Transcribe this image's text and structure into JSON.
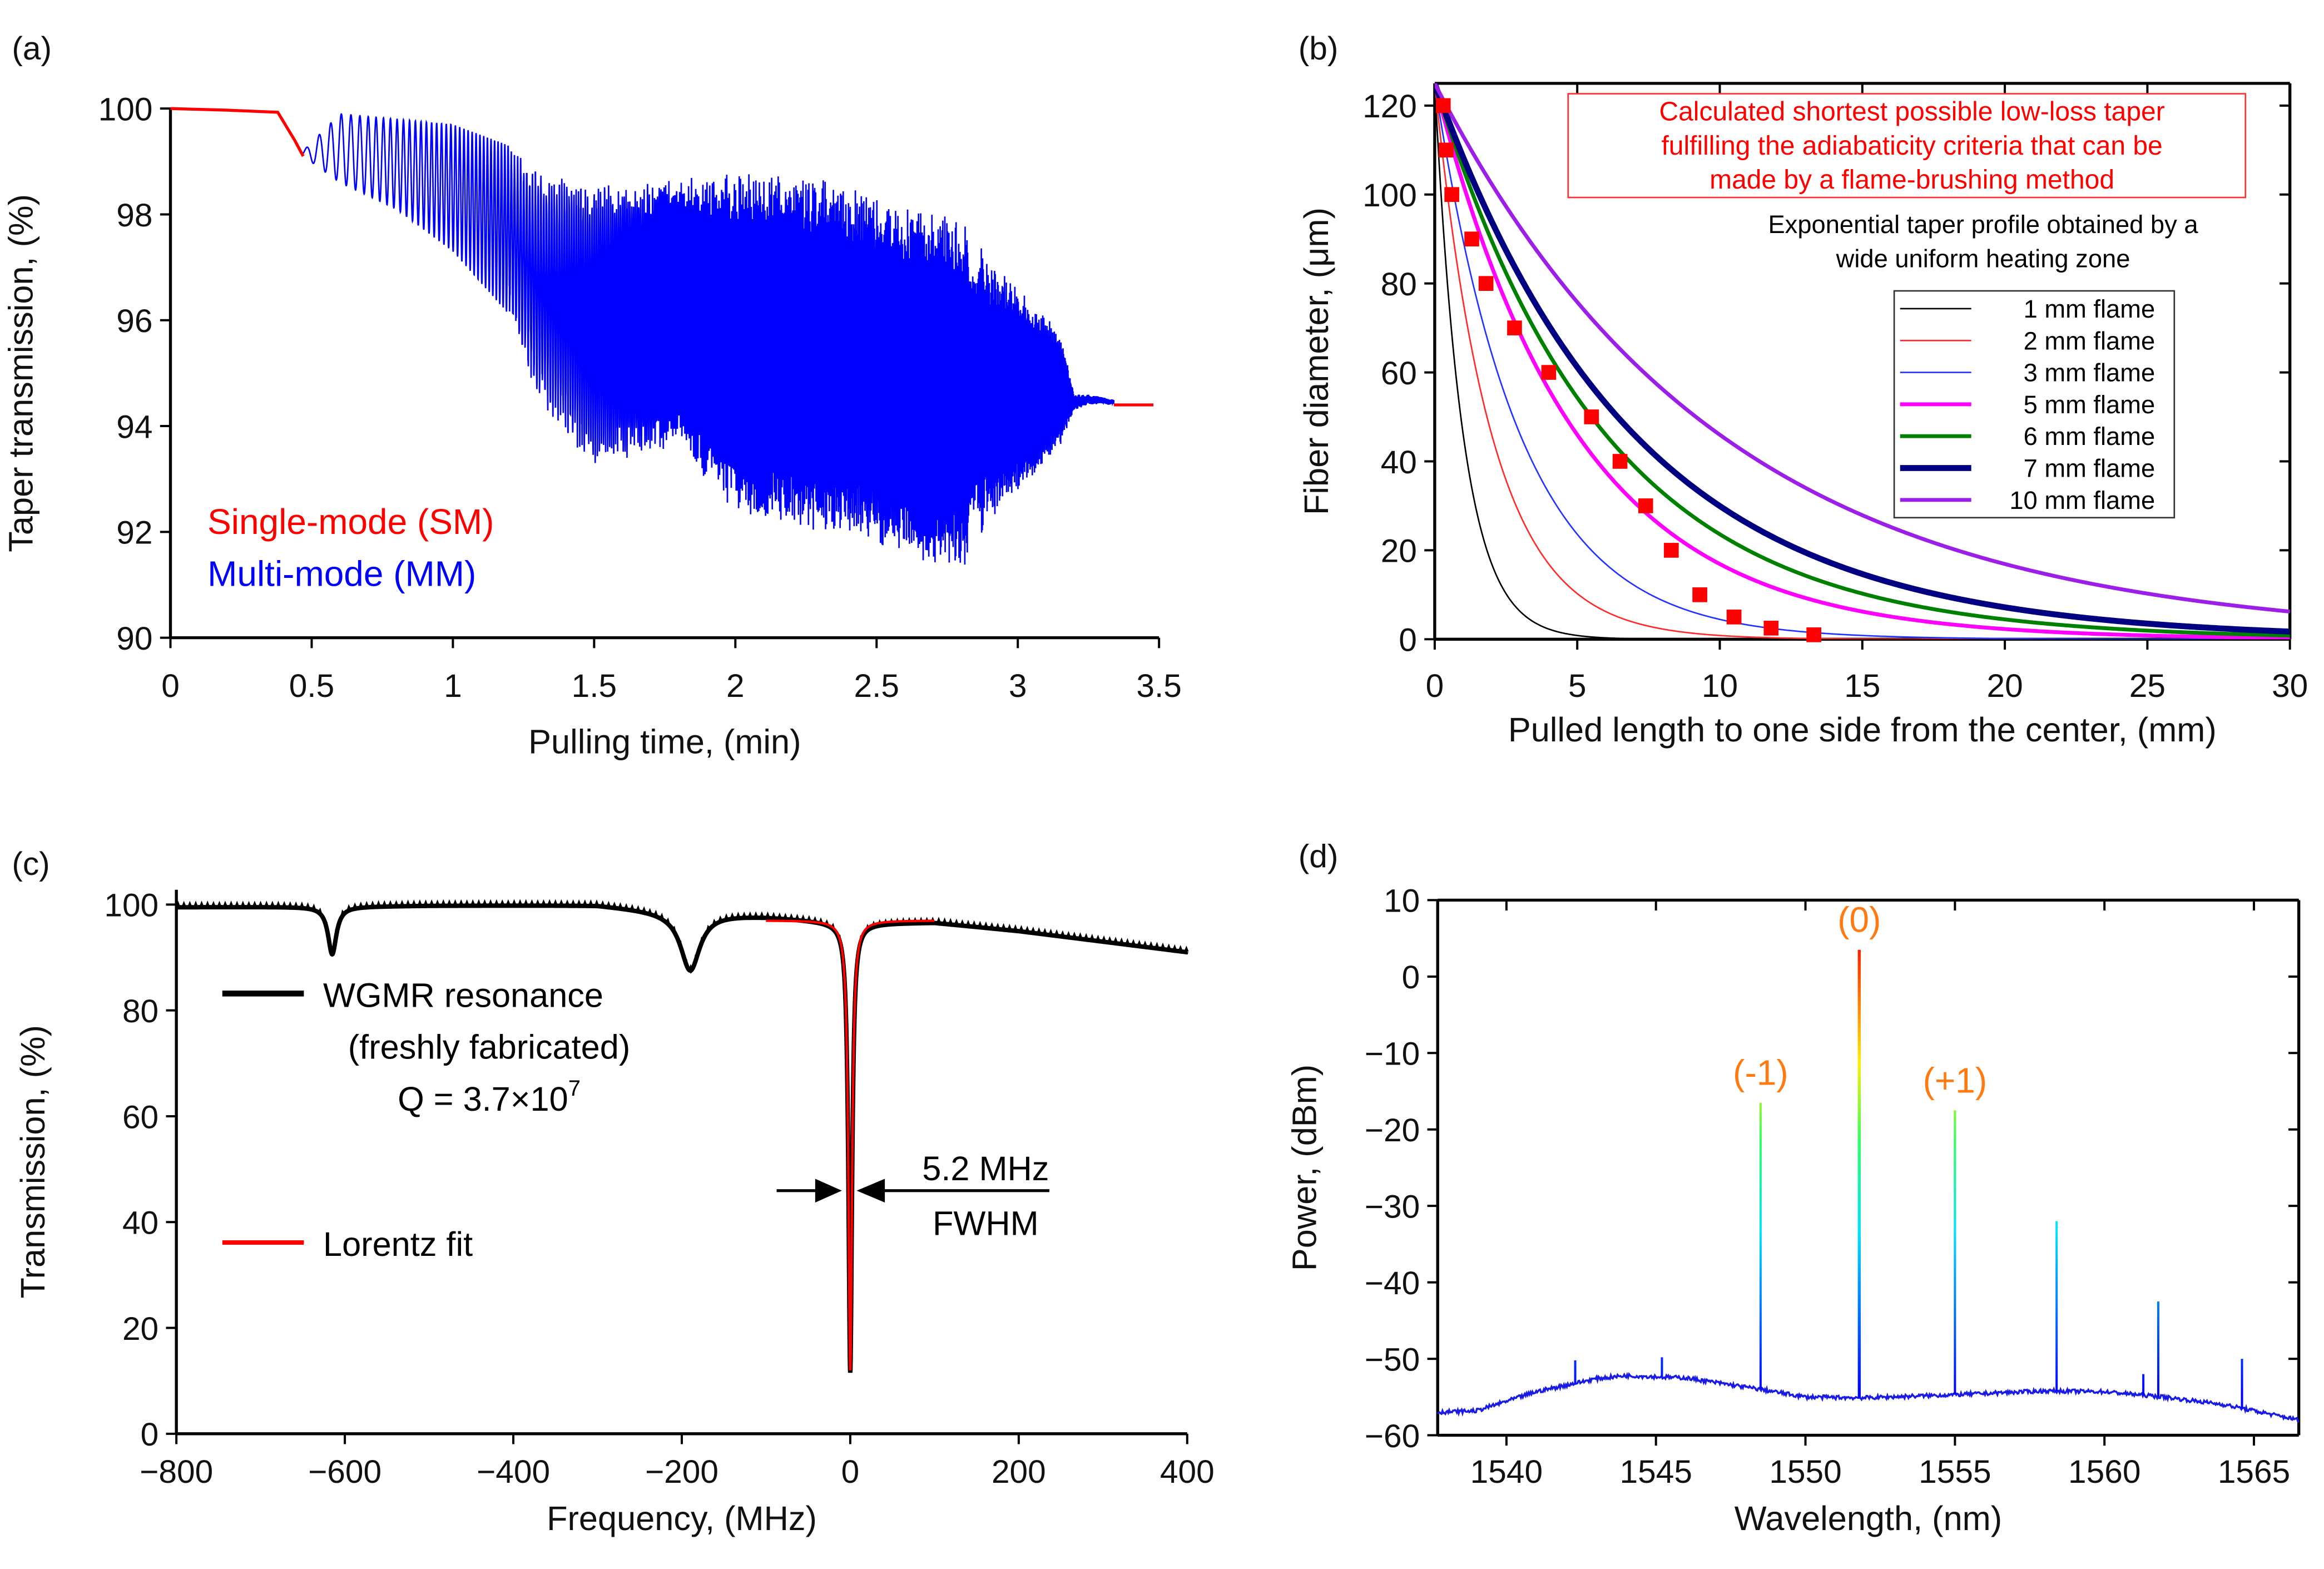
{
  "panel_labels": [
    "(a)",
    "(b)",
    "(c)",
    "(d)"
  ],
  "chart_data": [
    {
      "id": "a",
      "type": "line",
      "xlabel": "Pulling time, (min)",
      "ylabel": "Taper transmission, (%)",
      "xlim": [
        0,
        3.5
      ],
      "ylim": [
        90,
        100
      ],
      "xticks": [
        "0",
        "0.5",
        "1",
        "1.5",
        "2",
        "2.5",
        "3",
        "3.5"
      ],
      "xtick_values": [
        0,
        0.5,
        1,
        1.5,
        2,
        2.5,
        3,
        3.5
      ],
      "yticks": [
        "90",
        "92",
        "94",
        "96",
        "98",
        "100"
      ],
      "ytick_values": [
        90,
        92,
        94,
        96,
        98,
        100
      ],
      "legend": [
        "Single-mode (SM)",
        "Multi-mode (MM)"
      ],
      "colors": {
        "sm": "#ff0000",
        "mm": "#0000ff"
      },
      "sm_start": {
        "t": [
          0,
          0.2,
          0.38,
          0.44,
          0.47
        ],
        "y": [
          100,
          99.95,
          99.9,
          99.4,
          99.1
        ]
      },
      "sm_end": {
        "t": [
          3.34,
          3.48
        ],
        "y": [
          94.4,
          94.4
        ]
      },
      "mm_envelope": {
        "t": [
          0.47,
          0.6,
          0.8,
          1.0,
          1.2,
          1.3,
          1.5,
          1.8,
          2.0,
          2.3,
          2.6,
          2.8,
          2.9,
          3.0,
          3.15,
          3.2,
          3.25,
          3.34
        ],
        "upper": [
          99.2,
          99.9,
          99.8,
          99.7,
          99.3,
          98.8,
          98.6,
          98.7,
          98.8,
          98.7,
          98.2,
          97.9,
          97.2,
          96.6,
          95.8,
          94.6,
          94.6,
          94.5
        ],
        "lower": [
          99.1,
          98.6,
          98.1,
          97.3,
          96.1,
          94.5,
          93.2,
          93.6,
          92.3,
          92.0,
          91.5,
          91.2,
          92.2,
          92.7,
          93.6,
          94.3,
          94.4,
          94.4
        ]
      }
    },
    {
      "id": "b",
      "type": "line",
      "xlabel": "Pulled length to one side from the center, (mm)",
      "ylabel": "Fiber diameter, (μm)",
      "xlim": [
        0,
        30
      ],
      "ylim": [
        0,
        125
      ],
      "xticks": [
        "0",
        "5",
        "10",
        "15",
        "20",
        "25",
        "30"
      ],
      "xtick_values": [
        0,
        5,
        10,
        15,
        20,
        25,
        30
      ],
      "yticks": [
        "0",
        "20",
        "40",
        "60",
        "80",
        "100",
        "120"
      ],
      "ytick_values": [
        0,
        20,
        40,
        60,
        80,
        100,
        120
      ],
      "initial_diameter": 125,
      "series": [
        {
          "name": "1 mm flame",
          "decay_length": 1,
          "color": "#000000",
          "width": 1
        },
        {
          "name": "2 mm flame",
          "decay_length": 2,
          "color": "#ff2a2a",
          "width": 1
        },
        {
          "name": "3 mm flame",
          "decay_length": 3,
          "color": "#2233ff",
          "width": 1
        },
        {
          "name": "5 mm flame",
          "decay_length": 5,
          "color": "#ff00ff",
          "width": 2.6
        },
        {
          "name": "6 mm flame",
          "decay_length": 6,
          "color": "#008000",
          "width": 2.6
        },
        {
          "name": "7 mm flame",
          "decay_length": 7,
          "color": "#000080",
          "width": 4
        },
        {
          "name": "10 mm flame",
          "decay_length": 10,
          "color": "#9b1fe8",
          "width": 2.6
        }
      ],
      "calculated_points": {
        "x": [
          0.3,
          0.4,
          0.6,
          1.3,
          1.8,
          2.8,
          4.0,
          5.5,
          6.5,
          7.4,
          8.3,
          9.3,
          10.5,
          11.8,
          13.3
        ],
        "y": [
          120,
          110,
          100,
          90,
          80,
          70,
          60,
          50,
          40,
          30,
          20,
          10,
          5,
          2.5,
          1
        ],
        "color": "#ff0000"
      },
      "annotation_red": [
        "Calculated shortest possible low-loss taper",
        "fulfilling the adiabaticity criteria that can be",
        "made by a flame-brushing method"
      ],
      "annotation_black": [
        "Exponential taper profile obtained by a",
        "wide uniform heating zone"
      ],
      "legend_position": "center-right"
    },
    {
      "id": "c",
      "type": "line",
      "xlabel": "Frequency, (MHz)",
      "ylabel": "Transmission, (%)",
      "xlim": [
        -800,
        400
      ],
      "ylim": [
        0,
        100
      ],
      "xticks": [
        "−800",
        "−600",
        "−400",
        "−200",
        "0",
        "200",
        "400"
      ],
      "xtick_values": [
        -800,
        -600,
        -400,
        -200,
        0,
        200,
        400
      ],
      "yticks": [
        "0",
        "20",
        "40",
        "60",
        "80",
        "100"
      ],
      "ytick_values": [
        0,
        20,
        40,
        60,
        80,
        100
      ],
      "baseline": {
        "x": [
          -800,
          -620,
          -500,
          -300,
          -220,
          -100,
          0,
          100,
          200,
          300,
          400
        ],
        "y": [
          99.5,
          99.6,
          99.8,
          99.9,
          98.8,
          97.8,
          96.5,
          96.6,
          95,
          93,
          91
        ]
      },
      "dips": [
        {
          "center": -615,
          "depth": 9,
          "half_width": 6
        },
        {
          "center": -190,
          "depth": 11,
          "half_width": 14
        },
        {
          "center": 0,
          "depth": 85,
          "half_width": 2.6
        }
      ],
      "fit_range": [
        -100,
        100
      ],
      "legend": {
        "wgmr": "WGMR resonance",
        "fresh": "(freshly fabricated)",
        "q_prefix": "Q = 3.7×10",
        "q_exp": "7",
        "fit": "Lorentz fit"
      },
      "fwhm_value": "5.2 MHz",
      "fwhm_label": "FWHM",
      "colors": {
        "data": "#000000",
        "fit": "#ff0000"
      }
    },
    {
      "id": "d",
      "type": "line",
      "xlabel": "Wavelength, (nm)",
      "ylabel": "Power, (dBm)",
      "xlim": [
        1537.7,
        1566.5
      ],
      "ylim": [
        -60,
        10
      ],
      "xticks": [
        "1540",
        "1545",
        "1550",
        "1555",
        "1560",
        "1565"
      ],
      "xtick_values": [
        1540,
        1545,
        1550,
        1555,
        1560,
        1565
      ],
      "yticks": [
        "−60",
        "−50",
        "−40",
        "−30",
        "−20",
        "−10",
        "0",
        "10"
      ],
      "ytick_values": [
        -60,
        -50,
        -40,
        -30,
        -20,
        -10,
        0,
        10
      ],
      "baseline": {
        "x": [
          1537.7,
          1539,
          1541,
          1543,
          1544,
          1546,
          1548.5,
          1550,
          1552,
          1555,
          1558,
          1560,
          1562,
          1564,
          1566.5
        ],
        "y": [
          -57,
          -56.8,
          -54.3,
          -52.6,
          -52.2,
          -52.5,
          -54,
          -55,
          -55.1,
          -54.7,
          -54.2,
          -54.3,
          -55,
          -56,
          -58
        ]
      },
      "peaks": {
        "x": [
          1542.3,
          1545.2,
          1548.5,
          1551.8,
          1555.0,
          1558.4,
          1561.3,
          1561.8,
          1564.6
        ],
        "y": [
          -50.2,
          -49.8,
          -16.5,
          3.5,
          -17.5,
          -32,
          -52,
          -42.5,
          -50
        ]
      },
      "peak_labels": [
        {
          "text": "(-1)",
          "x": 1548.5,
          "y": -16.5
        },
        {
          "text": "(0)",
          "x": 1551.8,
          "y": 3.5
        },
        {
          "text": "(+1)",
          "x": 1555.0,
          "y": -17.5
        }
      ],
      "colors": {
        "baseline": "#1a1ae6",
        "label": "#ff7a10",
        "colormap": [
          "#0000ff",
          "#00e0ff",
          "#30ff60",
          "#ffee00",
          "#ff0000"
        ]
      }
    }
  ]
}
